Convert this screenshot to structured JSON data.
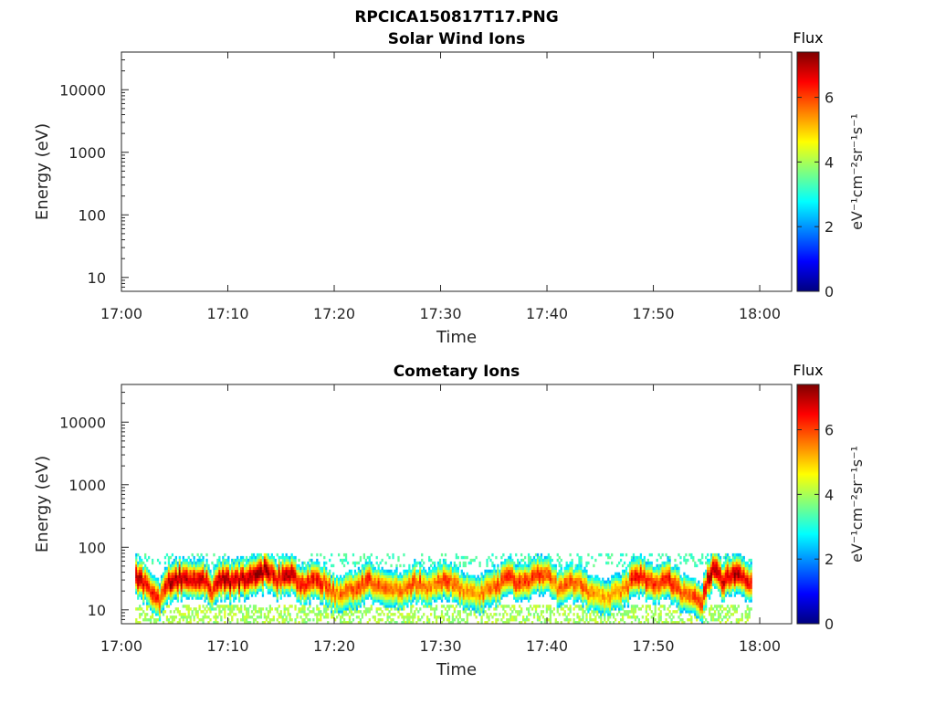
{
  "figure_title": "RPCICA150817T17.PNG",
  "colors": {
    "colormap": [
      "#00007f",
      "#0000ff",
      "#007fff",
      "#00ffff",
      "#7fff7f",
      "#ffff00",
      "#ff7f00",
      "#ff0000",
      "#7f0000"
    ],
    "axes": "#262626"
  },
  "chart_data": [
    {
      "type": "heatmap",
      "title": "Solar Wind Ions",
      "xlabel": "Time",
      "ylabel": "Energy (eV)",
      "x_ticks": [
        "17:00",
        "17:10",
        "17:20",
        "17:30",
        "17:40",
        "17:50",
        "18:00"
      ],
      "y_ticks": [
        "10",
        "100",
        "1000",
        "10000"
      ],
      "y_scale": "log",
      "ylim": [
        6,
        40000
      ],
      "xlim_minutes": [
        0,
        63
      ],
      "colorbar": {
        "label": "Flux",
        "units": "eV⁻¹cm⁻²sr⁻¹s⁻¹",
        "ticks": [
          "0",
          "2",
          "4",
          "6"
        ],
        "range": [
          0,
          7.4
        ]
      },
      "data": []
    },
    {
      "type": "heatmap",
      "title": "Cometary Ions",
      "xlabel": "Time",
      "ylabel": "Energy (eV)",
      "x_ticks": [
        "17:00",
        "17:10",
        "17:20",
        "17:30",
        "17:40",
        "17:50",
        "18:00"
      ],
      "y_ticks": [
        "10",
        "100",
        "1000",
        "10000"
      ],
      "y_scale": "log",
      "ylim": [
        6,
        40000
      ],
      "xlim_minutes": [
        0,
        63
      ],
      "colorbar": {
        "label": "Flux",
        "units": "eV⁻¹cm⁻²sr⁻¹s⁻¹",
        "ticks": [
          "0",
          "2",
          "4",
          "6"
        ],
        "range": [
          0,
          7.4
        ]
      },
      "data_time_range_minutes": [
        1.3,
        59.2
      ],
      "energy_range_ev": [
        6,
        80
      ],
      "peak_energy_profile": {
        "time_min": [
          1.3,
          2.5,
          3.5,
          4.5,
          5.5,
          6.5,
          7.5,
          8.5,
          9.2,
          10.5,
          12,
          13.5,
          14.5,
          15.5,
          17,
          18.5,
          20,
          21.5,
          23,
          24.5,
          26,
          27.5,
          29,
          30.5,
          32,
          33.5,
          35,
          36.5,
          38,
          39.5,
          41,
          42.5,
          44,
          45.5,
          47,
          48.5,
          50,
          51.5,
          53,
          54.5,
          55.5,
          56.5,
          57.5,
          59
        ],
        "peak_ev": [
          35,
          22,
          14,
          28,
          33,
          30,
          34,
          20,
          32,
          28,
          35,
          45,
          30,
          40,
          25,
          30,
          18,
          20,
          30,
          25,
          20,
          28,
          22,
          30,
          20,
          18,
          24,
          32,
          26,
          40,
          22,
          28,
          18,
          16,
          20,
          35,
          25,
          30,
          16,
          14,
          45,
          28,
          42,
          25
        ],
        "peak_flux": [
          7.2,
          6.5,
          6.0,
          7.0,
          7.2,
          6.8,
          7.1,
          6.2,
          7.3,
          7.0,
          7.2,
          7.3,
          6.6,
          7.0,
          6.4,
          6.6,
          5.8,
          5.9,
          6.3,
          6.0,
          5.6,
          6.2,
          5.7,
          6.3,
          5.6,
          5.4,
          6.0,
          6.5,
          6.1,
          6.3,
          5.7,
          6.2,
          5.5,
          5.4,
          5.6,
          6.8,
          6.1,
          6.6,
          5.9,
          6.3,
          7.3,
          6.8,
          7.2,
          6.8
        ]
      }
    }
  ]
}
